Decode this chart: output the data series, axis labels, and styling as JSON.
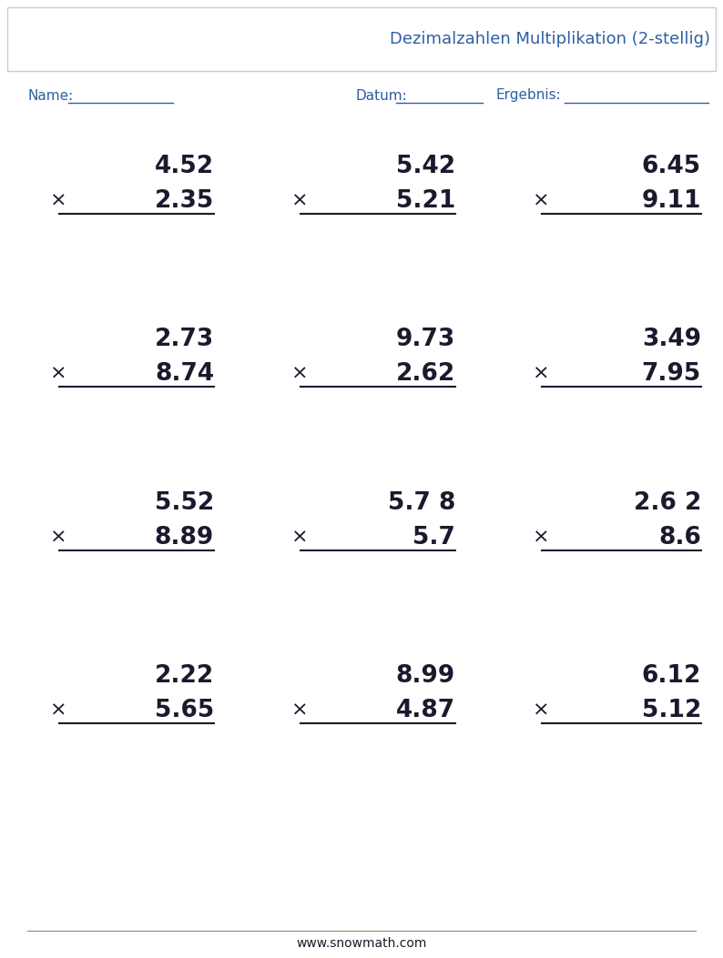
{
  "title": "Dezimalzahlen Multiplikation (2-stellig)",
  "title_color": "#2e5fa3",
  "name_label": "Name:",
  "datum_label": "Datum:",
  "ergebnis_label": "Ergebnis:",
  "footer": "www.snowmath.com",
  "problems": [
    [
      [
        "4.52",
        "2.35"
      ],
      [
        "5.42",
        "5.21"
      ],
      [
        "6.45",
        "9.11"
      ]
    ],
    [
      [
        "2.73",
        "8.74"
      ],
      [
        "9.73",
        "2.62"
      ],
      [
        "3.49",
        "7.95"
      ]
    ],
    [
      [
        "5.52",
        "8.89"
      ],
      [
        "5.7 8",
        "5.7"
      ],
      [
        "2.6 2",
        "8.6"
      ]
    ],
    [
      [
        "2.22",
        "5.65"
      ],
      [
        "8.99",
        "4.87"
      ],
      [
        "6.12",
        "5.12"
      ]
    ]
  ],
  "text_color": "#1a1a2e",
  "label_color": "#2e5fa3",
  "line_color": "#1a1a2e",
  "background": "#ffffff",
  "header_box_color": "#ffffff",
  "header_border_color": "#cccccc"
}
